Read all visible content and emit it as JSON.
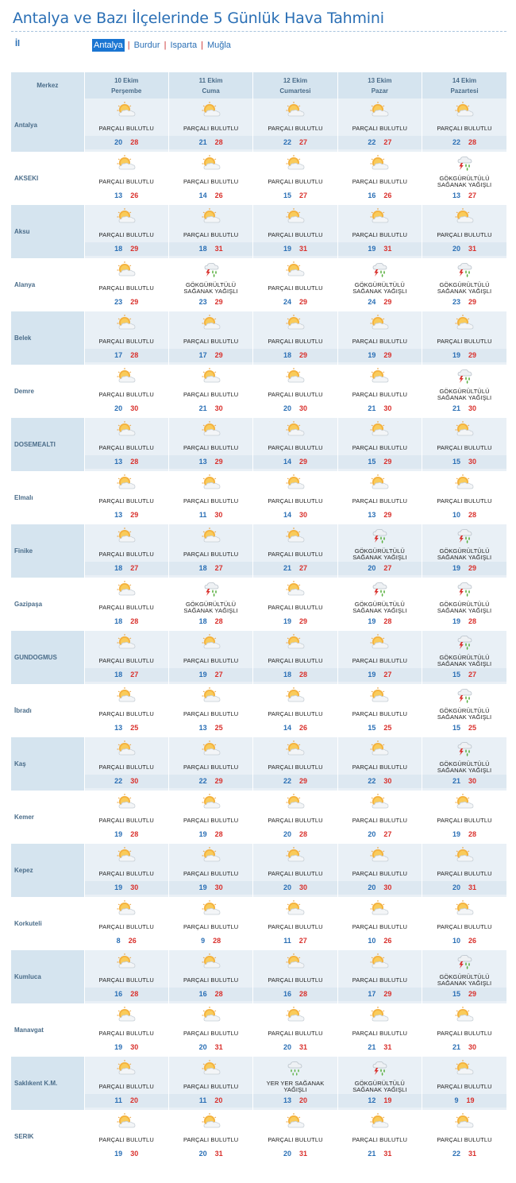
{
  "title": "Antalya ve Bazı İlçelerinde 5 Günlük Hava Tahmini",
  "il_label": "İl",
  "tabs": [
    {
      "label": "Antalya",
      "active": true
    },
    {
      "label": "Burdur",
      "active": false
    },
    {
      "label": "Isparta",
      "active": false
    },
    {
      "label": "Muğla",
      "active": false
    }
  ],
  "separator": "|",
  "header": {
    "merkez": "Merkez",
    "days": [
      {
        "date": "10 Ekim",
        "weekday": "Perşembe"
      },
      {
        "date": "11 Ekim",
        "weekday": "Cuma"
      },
      {
        "date": "12 Ekim",
        "weekday": "Cumartesi"
      },
      {
        "date": "13 Ekim",
        "weekday": "Pazar"
      },
      {
        "date": "14 Ekim",
        "weekday": "Pazartesi"
      }
    ]
  },
  "conditions": {
    "pb": {
      "lines": [
        "PARÇALI BULUTLU"
      ],
      "icon": "partly-cloudy-icon"
    },
    "gs": {
      "lines": [
        "GÖKGÜRÜLTÜLÜ",
        "SAĞANAK YAĞIŞLI"
      ],
      "icon": "thunderstorm-icon"
    },
    "ys": {
      "lines": [
        "YER YER SAĞANAK",
        "YAĞIŞLI"
      ],
      "icon": "rain-shower-icon"
    }
  },
  "colors": {
    "min": "#2a6fb5",
    "max": "#d9302c",
    "header_bg": "#d5e4ef",
    "accent": "#1a75d2"
  },
  "rows": [
    {
      "name": "Antalya",
      "days": [
        [
          "pb",
          20,
          28
        ],
        [
          "pb",
          21,
          28
        ],
        [
          "pb",
          22,
          27
        ],
        [
          "pb",
          22,
          27
        ],
        [
          "pb",
          22,
          28
        ]
      ]
    },
    {
      "name": "AKSEKI",
      "days": [
        [
          "pb",
          13,
          26
        ],
        [
          "pb",
          14,
          26
        ],
        [
          "pb",
          15,
          27
        ],
        [
          "pb",
          16,
          26
        ],
        [
          "gs",
          13,
          27
        ]
      ]
    },
    {
      "name": "Aksu",
      "days": [
        [
          "pb",
          18,
          29
        ],
        [
          "pb",
          18,
          31
        ],
        [
          "pb",
          19,
          31
        ],
        [
          "pb",
          19,
          31
        ],
        [
          "pb",
          20,
          31
        ]
      ]
    },
    {
      "name": "Alanya",
      "days": [
        [
          "pb",
          23,
          29
        ],
        [
          "gs",
          23,
          29
        ],
        [
          "pb",
          24,
          29
        ],
        [
          "gs",
          24,
          29
        ],
        [
          "gs",
          23,
          29
        ]
      ]
    },
    {
      "name": "Belek",
      "days": [
        [
          "pb",
          17,
          28
        ],
        [
          "pb",
          17,
          29
        ],
        [
          "pb",
          18,
          29
        ],
        [
          "pb",
          19,
          29
        ],
        [
          "pb",
          19,
          29
        ]
      ]
    },
    {
      "name": "Demre",
      "days": [
        [
          "pb",
          20,
          30
        ],
        [
          "pb",
          21,
          30
        ],
        [
          "pb",
          20,
          30
        ],
        [
          "pb",
          21,
          30
        ],
        [
          "gs",
          21,
          30
        ]
      ]
    },
    {
      "name": "DOSEMEALTI",
      "days": [
        [
          "pb",
          13,
          28
        ],
        [
          "pb",
          13,
          29
        ],
        [
          "pb",
          14,
          29
        ],
        [
          "pb",
          15,
          29
        ],
        [
          "pb",
          15,
          30
        ]
      ]
    },
    {
      "name": "Elmalı",
      "days": [
        [
          "pb",
          13,
          29
        ],
        [
          "pb",
          11,
          30
        ],
        [
          "pb",
          14,
          30
        ],
        [
          "pb",
          13,
          29
        ],
        [
          "pb",
          10,
          28
        ]
      ]
    },
    {
      "name": "Finike",
      "days": [
        [
          "pb",
          18,
          27
        ],
        [
          "pb",
          18,
          27
        ],
        [
          "pb",
          21,
          27
        ],
        [
          "gs",
          20,
          27
        ],
        [
          "gs",
          19,
          29
        ]
      ]
    },
    {
      "name": "Gazipaşa",
      "days": [
        [
          "pb",
          18,
          28
        ],
        [
          "gs",
          18,
          28
        ],
        [
          "pb",
          19,
          29
        ],
        [
          "gs",
          19,
          28
        ],
        [
          "gs",
          19,
          28
        ]
      ]
    },
    {
      "name": "GUNDOGMUS",
      "days": [
        [
          "pb",
          18,
          27
        ],
        [
          "pb",
          19,
          27
        ],
        [
          "pb",
          18,
          28
        ],
        [
          "pb",
          19,
          27
        ],
        [
          "gs",
          15,
          27
        ]
      ]
    },
    {
      "name": "İbradı",
      "days": [
        [
          "pb",
          13,
          25
        ],
        [
          "pb",
          13,
          25
        ],
        [
          "pb",
          14,
          26
        ],
        [
          "pb",
          15,
          25
        ],
        [
          "gs",
          15,
          25
        ]
      ]
    },
    {
      "name": "Kaş",
      "days": [
        [
          "pb",
          22,
          30
        ],
        [
          "pb",
          22,
          29
        ],
        [
          "pb",
          22,
          29
        ],
        [
          "pb",
          22,
          30
        ],
        [
          "gs",
          21,
          30
        ]
      ]
    },
    {
      "name": "Kemer",
      "days": [
        [
          "pb",
          19,
          28
        ],
        [
          "pb",
          19,
          28
        ],
        [
          "pb",
          20,
          28
        ],
        [
          "pb",
          20,
          27
        ],
        [
          "pb",
          19,
          28
        ]
      ]
    },
    {
      "name": "Kepez",
      "days": [
        [
          "pb",
          19,
          30
        ],
        [
          "pb",
          19,
          30
        ],
        [
          "pb",
          20,
          30
        ],
        [
          "pb",
          20,
          30
        ],
        [
          "pb",
          20,
          31
        ]
      ]
    },
    {
      "name": "Korkuteli",
      "days": [
        [
          "pb",
          8,
          26
        ],
        [
          "pb",
          9,
          28
        ],
        [
          "pb",
          11,
          27
        ],
        [
          "pb",
          10,
          26
        ],
        [
          "pb",
          10,
          26
        ]
      ]
    },
    {
      "name": "Kumluca",
      "days": [
        [
          "pb",
          16,
          28
        ],
        [
          "pb",
          16,
          28
        ],
        [
          "pb",
          16,
          28
        ],
        [
          "pb",
          17,
          29
        ],
        [
          "gs",
          15,
          29
        ]
      ]
    },
    {
      "name": "Manavgat",
      "days": [
        [
          "pb",
          19,
          30
        ],
        [
          "pb",
          20,
          31
        ],
        [
          "pb",
          20,
          31
        ],
        [
          "pb",
          21,
          31
        ],
        [
          "pb",
          21,
          30
        ]
      ]
    },
    {
      "name": "Saklıkent K.M.",
      "days": [
        [
          "pb",
          11,
          20
        ],
        [
          "pb",
          11,
          20
        ],
        [
          "ys",
          13,
          20
        ],
        [
          "gs",
          12,
          19
        ],
        [
          "pb",
          9,
          19
        ]
      ]
    },
    {
      "name": "SERIK",
      "days": [
        [
          "pb",
          19,
          30
        ],
        [
          "pb",
          20,
          31
        ],
        [
          "pb",
          20,
          31
        ],
        [
          "pb",
          21,
          31
        ],
        [
          "pb",
          22,
          31
        ]
      ]
    }
  ]
}
